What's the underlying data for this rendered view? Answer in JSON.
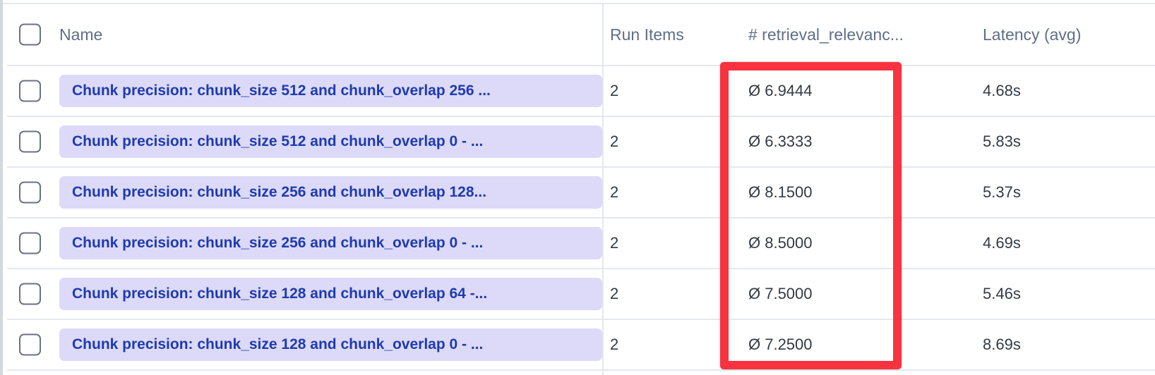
{
  "table": {
    "columns": {
      "name": "Name",
      "run_items": "Run Items",
      "retrieval_relevance": "# retrieval_relevanc...",
      "latency": "Latency (avg)"
    },
    "rows": [
      {
        "name": "Chunk precision: chunk_size 512 and chunk_overlap 256 ...",
        "run_items": "2",
        "retrieval_relevance": "Ø 6.9444",
        "latency": "4.68s"
      },
      {
        "name": "Chunk precision: chunk_size 512 and chunk_overlap 0 - ...",
        "run_items": "2",
        "retrieval_relevance": "Ø 6.3333",
        "latency": "5.83s"
      },
      {
        "name": "Chunk precision: chunk_size 256 and chunk_overlap 128...",
        "run_items": "2",
        "retrieval_relevance": "Ø 8.1500",
        "latency": "5.37s"
      },
      {
        "name": "Chunk precision: chunk_size 256 and chunk_overlap 0 - ...",
        "run_items": "2",
        "retrieval_relevance": "Ø 8.5000",
        "latency": "4.69s"
      },
      {
        "name": "Chunk precision: chunk_size 128 and chunk_overlap 64 -...",
        "run_items": "2",
        "retrieval_relevance": "Ø 7.5000",
        "latency": "5.46s"
      },
      {
        "name": "Chunk precision: chunk_size 128 and chunk_overlap 0 - ...",
        "run_items": "2",
        "retrieval_relevance": "Ø 7.2500",
        "latency": "8.69s"
      }
    ]
  },
  "highlight_color": "#f8333f",
  "pill_color": "#dcdaf8",
  "link_color": "#1f3ab0"
}
